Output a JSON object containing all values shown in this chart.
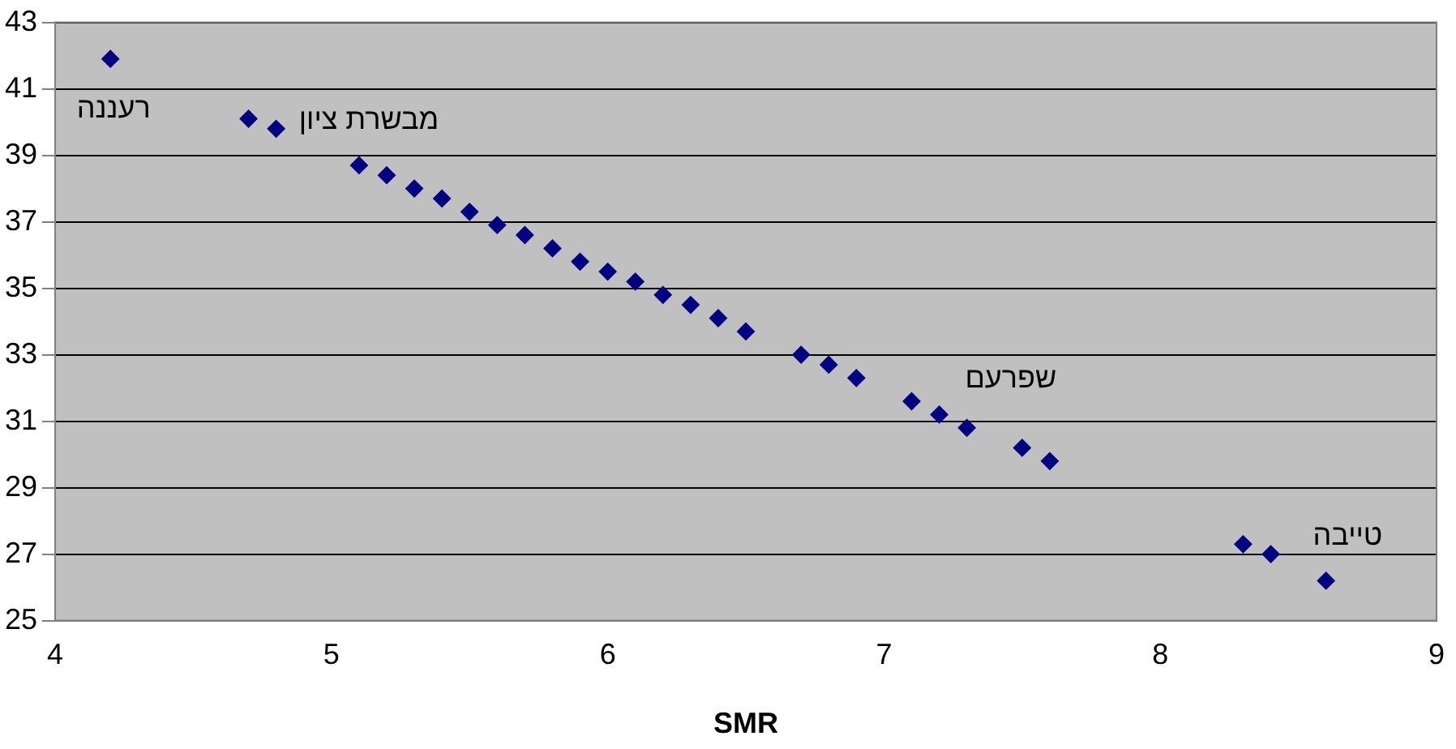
{
  "chart_data": {
    "type": "scatter",
    "xlabel": "SMR",
    "x": [
      4.2,
      4.7,
      4.8,
      5.1,
      5.2,
      5.3,
      5.4,
      5.5,
      5.6,
      5.7,
      5.8,
      5.9,
      6.0,
      6.1,
      6.2,
      6.3,
      6.4,
      6.5,
      6.7,
      6.8,
      6.9,
      7.1,
      7.2,
      7.3,
      7.5,
      7.6,
      8.3,
      8.4,
      8.6
    ],
    "series": [
      {
        "color": "#000080",
        "values": [
          41.9,
          40.1,
          39.8,
          38.7,
          38.4,
          38.0,
          37.7,
          37.3,
          36.9,
          36.6,
          36.2,
          35.8,
          35.5,
          35.2,
          34.8,
          34.5,
          34.1,
          33.7,
          33.0,
          32.7,
          32.3,
          31.6,
          31.2,
          30.8,
          30.2,
          29.8,
          27.3,
          27.0,
          26.2
        ]
      }
    ],
    "xlim": [
      4,
      9
    ],
    "xticks": [
      4,
      5,
      6,
      7,
      8,
      9
    ],
    "ylim": [
      25,
      43
    ],
    "yticks": [
      25,
      27,
      29,
      31,
      33,
      35,
      37,
      39,
      41,
      43
    ],
    "grid": "y",
    "legend": false,
    "marker": "diamond",
    "annotations": [
      {
        "text": "רעננה",
        "x": 4.2,
        "y": 41.9
      },
      {
        "text": "מבשרת ציון",
        "x": 4.8,
        "y": 39.8
      },
      {
        "text": "שפרעם",
        "x": 7.5,
        "y": 30.2
      },
      {
        "text": "טייבה",
        "x": 8.4,
        "y": 27.0
      }
    ]
  }
}
